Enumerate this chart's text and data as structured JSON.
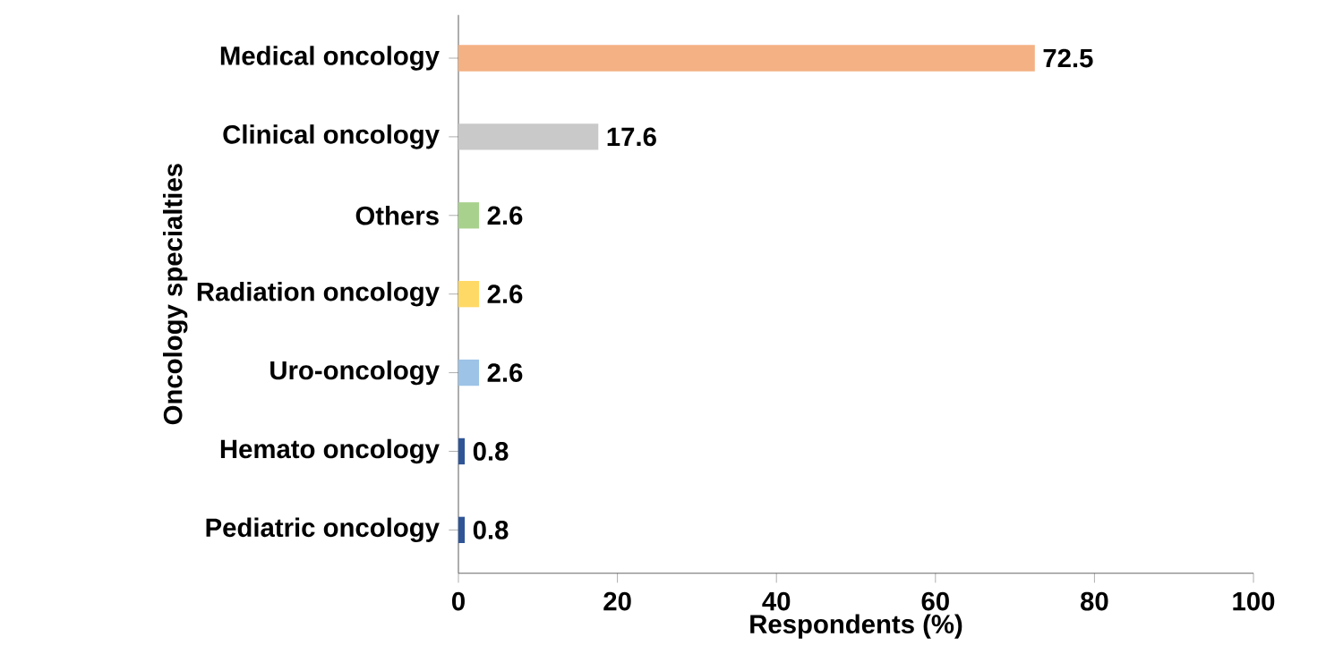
{
  "chart_data": {
    "type": "bar",
    "orientation": "horizontal",
    "xlabel": "Respondents (%)",
    "ylabel": "Oncology specialties",
    "categories": [
      "Medical oncology",
      "Clinical oncology",
      "Others",
      "Radiation oncology",
      "Uro-oncology",
      "Hemato oncology",
      "Pediatric oncology"
    ],
    "values": [
      72.5,
      17.6,
      2.6,
      2.6,
      2.6,
      0.8,
      0.8
    ],
    "colors": [
      "#f4b183",
      "#c9c9c9",
      "#a9d18e",
      "#ffd966",
      "#9dc3e6",
      "#2f5597",
      "#2f5597"
    ],
    "xlim": [
      0,
      100
    ],
    "xticks": [
      0,
      20,
      40,
      60,
      80,
      100
    ],
    "data_labels": true
  }
}
